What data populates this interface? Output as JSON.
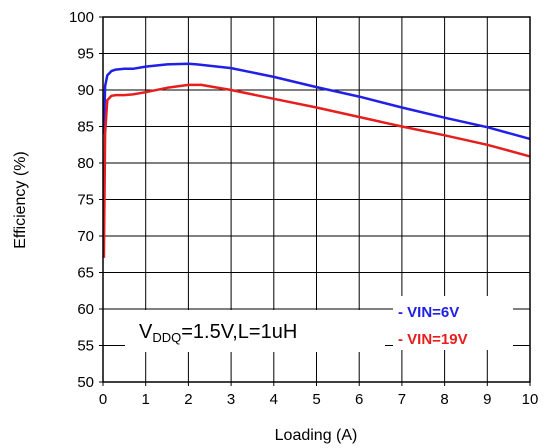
{
  "chart_data": {
    "type": "line",
    "title": "",
    "xlabel": "Loading (A)",
    "ylabel": "Efficiency (%)",
    "xlim": [
      0,
      10
    ],
    "ylim": [
      50,
      100
    ],
    "x_ticks": [
      "0",
      "1",
      "2",
      "3",
      "4",
      "5",
      "6",
      "7",
      "8",
      "9",
      "10"
    ],
    "y_ticks": [
      "50",
      "55",
      "60",
      "65",
      "70",
      "75",
      "80",
      "85",
      "90",
      "95",
      "100"
    ],
    "grid": true,
    "legend_position": "bottom-right",
    "series": [
      {
        "name": "VIN=6V",
        "color": "#2020e6",
        "x": [
          0.02,
          0.05,
          0.1,
          0.2,
          0.3,
          0.5,
          0.7,
          1.0,
          1.5,
          2.0,
          2.2,
          3.0,
          4.0,
          5.0,
          6.0,
          7.0,
          8.0,
          9.0,
          10.0
        ],
        "y": [
          84.0,
          90.5,
          92.0,
          92.6,
          92.8,
          92.9,
          92.9,
          93.2,
          93.5,
          93.6,
          93.5,
          93.0,
          91.8,
          90.4,
          89.1,
          87.6,
          86.2,
          84.9,
          83.3
        ]
      },
      {
        "name": "VIN=19V",
        "color": "#e61e1e",
        "x": [
          0.02,
          0.05,
          0.1,
          0.2,
          0.3,
          0.5,
          0.7,
          1.0,
          1.5,
          2.0,
          2.3,
          3.0,
          4.0,
          5.0,
          6.0,
          7.0,
          8.0,
          9.0,
          10.0
        ],
        "y": [
          67.0,
          84.0,
          88.6,
          89.2,
          89.3,
          89.3,
          89.4,
          89.7,
          90.3,
          90.7,
          90.7,
          90.0,
          88.8,
          87.6,
          86.3,
          85.0,
          83.8,
          82.5,
          80.9
        ]
      }
    ],
    "legend_entries": [
      "- VIN=6V",
      "- VIN=19V"
    ],
    "annotation": {
      "prefix": "V",
      "subscript": "DDQ",
      "suffix": "=1.5V,L=1uH"
    }
  }
}
